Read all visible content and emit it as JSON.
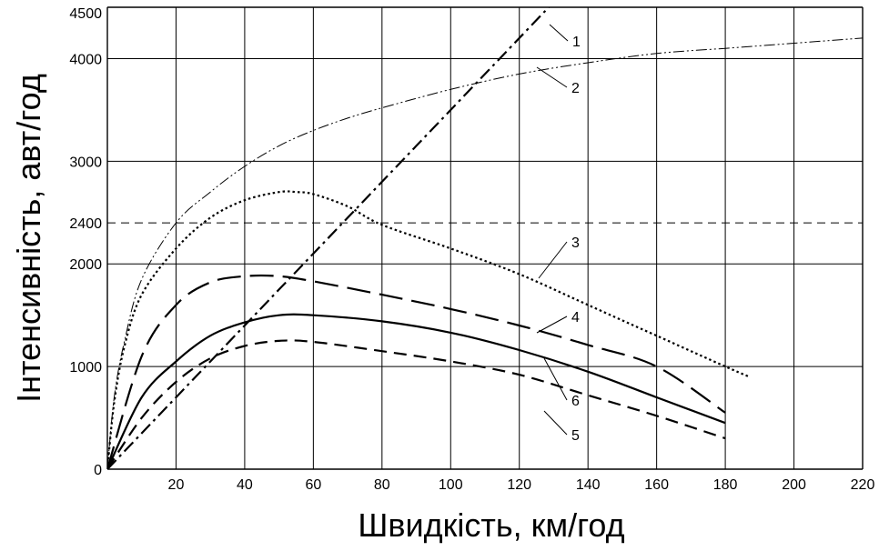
{
  "chart_data": {
    "type": "line",
    "xlabel": "Швидкість, км/год",
    "ylabel": "Інтенсивність, авт/год",
    "xlim": [
      0,
      220
    ],
    "ylim": [
      0,
      4500
    ],
    "x_ticks": [
      "20",
      "40",
      "60",
      "80",
      "100",
      "120",
      "140",
      "160",
      "180",
      "200",
      "220"
    ],
    "y_ticks": [
      {
        "label": "0",
        "value": 0
      },
      {
        "label": "1000",
        "value": 1000
      },
      {
        "label": "2000",
        "value": 2000
      },
      {
        "label": "2400",
        "value": 2400
      },
      {
        "label": "3000",
        "value": 3000
      },
      {
        "label": "4000",
        "value": 4000
      },
      {
        "label": "4500",
        "value": 4500
      }
    ],
    "grid": true,
    "reference_line": {
      "y": 2400,
      "style": "dashed"
    },
    "series": [
      {
        "name": "1",
        "dash": "dash-dot-heavy",
        "width": 2.2,
        "points": [
          [
            0,
            0
          ],
          [
            10,
            350
          ],
          [
            20,
            700
          ],
          [
            30,
            1050
          ],
          [
            40,
            1400
          ],
          [
            50,
            1750
          ],
          [
            60,
            2100
          ],
          [
            70,
            2450
          ],
          [
            80,
            2800
          ],
          [
            90,
            3150
          ],
          [
            100,
            3500
          ],
          [
            110,
            3850
          ],
          [
            120,
            4200
          ],
          [
            130,
            4550
          ],
          [
            135,
            4720
          ]
        ]
      },
      {
        "name": "2",
        "dash": "dash-dot-dot",
        "width": 1.0,
        "points": [
          [
            0,
            0
          ],
          [
            2,
            700
          ],
          [
            5,
            1250
          ],
          [
            10,
            1850
          ],
          [
            20,
            2400
          ],
          [
            30,
            2700
          ],
          [
            40,
            2950
          ],
          [
            50,
            3150
          ],
          [
            60,
            3300
          ],
          [
            70,
            3420
          ],
          [
            80,
            3520
          ],
          [
            100,
            3700
          ],
          [
            120,
            3850
          ],
          [
            140,
            3960
          ],
          [
            160,
            4050
          ],
          [
            180,
            4100
          ],
          [
            200,
            4150
          ],
          [
            220,
            4200
          ]
        ]
      },
      {
        "name": "3",
        "dash": "dotted",
        "width": 2.2,
        "points": [
          [
            0,
            0
          ],
          [
            2,
            650
          ],
          [
            5,
            1200
          ],
          [
            10,
            1700
          ],
          [
            20,
            2150
          ],
          [
            30,
            2450
          ],
          [
            40,
            2620
          ],
          [
            50,
            2700
          ],
          [
            55,
            2700
          ],
          [
            60,
            2680
          ],
          [
            70,
            2560
          ],
          [
            80,
            2380
          ],
          [
            100,
            2150
          ],
          [
            120,
            1900
          ],
          [
            140,
            1600
          ],
          [
            160,
            1300
          ],
          [
            180,
            1000
          ],
          [
            187,
            900
          ]
        ]
      },
      {
        "name": "4",
        "dash": "long-dash",
        "width": 2.2,
        "points": [
          [
            0,
            0
          ],
          [
            10,
            1100
          ],
          [
            20,
            1600
          ],
          [
            30,
            1820
          ],
          [
            40,
            1880
          ],
          [
            50,
            1880
          ],
          [
            60,
            1830
          ],
          [
            80,
            1700
          ],
          [
            100,
            1560
          ],
          [
            120,
            1400
          ],
          [
            140,
            1210
          ],
          [
            160,
            1000
          ],
          [
            180,
            550
          ]
        ]
      },
      {
        "name": "5",
        "dash": "dash",
        "width": 2.2,
        "points": [
          [
            0,
            0
          ],
          [
            10,
            500
          ],
          [
            20,
            850
          ],
          [
            30,
            1080
          ],
          [
            40,
            1200
          ],
          [
            50,
            1250
          ],
          [
            60,
            1240
          ],
          [
            80,
            1150
          ],
          [
            100,
            1050
          ],
          [
            120,
            920
          ],
          [
            140,
            720
          ],
          [
            160,
            520
          ],
          [
            180,
            300
          ]
        ]
      },
      {
        "name": "6",
        "dash": "solid",
        "width": 2.2,
        "points": [
          [
            0,
            0
          ],
          [
            10,
            700
          ],
          [
            20,
            1050
          ],
          [
            30,
            1300
          ],
          [
            40,
            1430
          ],
          [
            50,
            1500
          ],
          [
            60,
            1500
          ],
          [
            80,
            1440
          ],
          [
            100,
            1330
          ],
          [
            120,
            1160
          ],
          [
            140,
            950
          ],
          [
            160,
            700
          ],
          [
            180,
            450
          ]
        ]
      }
    ],
    "curve_labels": [
      "1",
      "2",
      "3",
      "4",
      "5",
      "6"
    ],
    "colors": {
      "line": "#000000",
      "grid": "#000000",
      "background": "#ffffff"
    }
  }
}
